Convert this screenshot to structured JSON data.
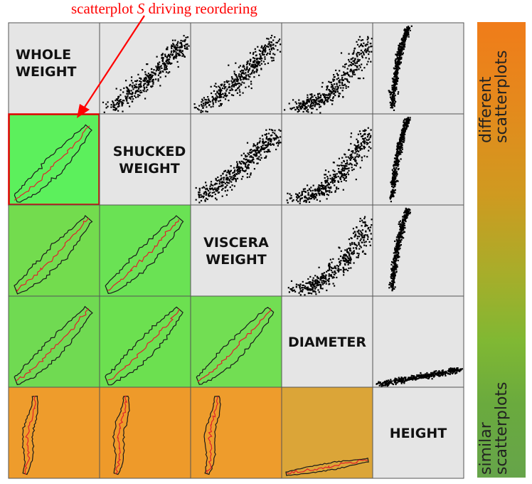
{
  "annotation": {
    "prefix": "scatterplot ",
    "symbol": "S",
    "suffix": " driving reordering"
  },
  "colors": {
    "annotation": "#ff0000",
    "cell_background": "#e5e5e5",
    "similar": "#66a44a",
    "different": "#f07c1a",
    "contour": "#1a1a1a",
    "median_line": "#e0202a",
    "highlight_border": "#e00000"
  },
  "colorbar": {
    "top_label": [
      "different",
      "scatterplots"
    ],
    "bottom_label": [
      "similar",
      "scatterplots"
    ]
  },
  "chart_data": {
    "type": "scatter",
    "variables": [
      "WHOLE WEIGHT",
      "SHUCKED WEIGHT",
      "VISCERA WEIGHT",
      "DIAMETER",
      "HEIGHT"
    ],
    "variable_label_lines": [
      [
        "WHOLE",
        "WEIGHT"
      ],
      [
        "SHUCKED",
        "WEIGHT"
      ],
      [
        "VISCERA",
        "WEIGHT"
      ],
      [
        "DIAMETER"
      ],
      [
        "HEIGHT"
      ]
    ],
    "upper_triangle": "scatterplot",
    "lower_triangle": "density contour with median curve",
    "highlighted_cell": {
      "row": 1,
      "col": 0
    },
    "lower_cell_colors": [
      {
        "row": 1,
        "col": 0,
        "color": "#5cf05c"
      },
      {
        "row": 2,
        "col": 0,
        "color": "#73dc4e"
      },
      {
        "row": 2,
        "col": 1,
        "color": "#6ae254"
      },
      {
        "row": 3,
        "col": 0,
        "color": "#70da52"
      },
      {
        "row": 3,
        "col": 1,
        "color": "#6ce050"
      },
      {
        "row": 3,
        "col": 2,
        "color": "#72de53"
      },
      {
        "row": 4,
        "col": 0,
        "color": "#ee9c2c"
      },
      {
        "row": 4,
        "col": 1,
        "color": "#ee9a2a"
      },
      {
        "row": 4,
        "col": 2,
        "color": "#ee9c2c"
      },
      {
        "row": 4,
        "col": 3,
        "color": "#dba538"
      }
    ],
    "legend": {
      "position": "right",
      "top": "different scatterplots",
      "bottom": "similar scatterplots"
    },
    "grid": false
  }
}
